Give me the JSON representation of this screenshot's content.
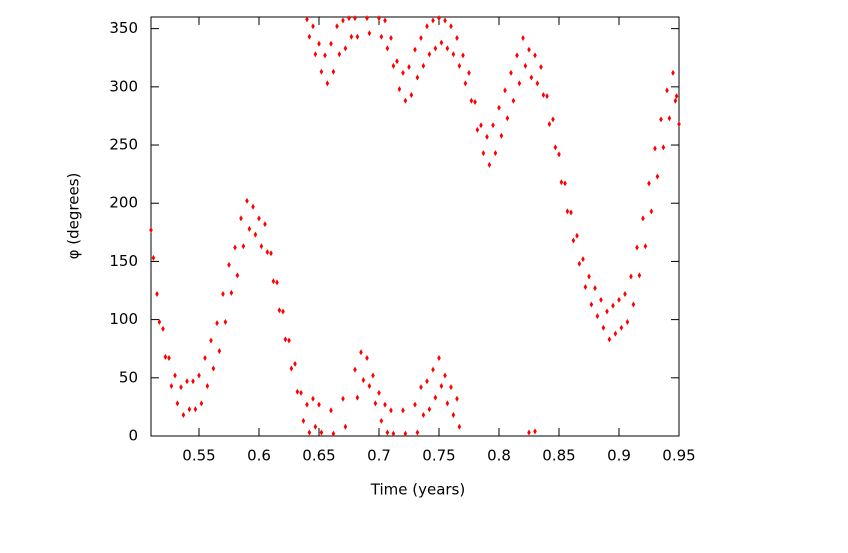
{
  "chart_data": {
    "type": "scatter",
    "x_label": "Time (years)",
    "y_label": "φ (degrees)",
    "color": "#ff0000",
    "xlim": [
      0.51,
      0.95
    ],
    "ylim": [
      0,
      360
    ],
    "xticks": [
      0.55,
      0.6,
      0.65,
      0.7,
      0.75,
      0.8,
      0.85,
      0.9,
      0.95
    ],
    "yticks": [
      0,
      50,
      100,
      150,
      200,
      250,
      300,
      350
    ],
    "x": [
      0.51,
      0.512,
      0.515,
      0.517,
      0.52,
      0.522,
      0.525,
      0.527,
      0.53,
      0.532,
      0.535,
      0.537,
      0.54,
      0.542,
      0.545,
      0.547,
      0.55,
      0.552,
      0.555,
      0.557,
      0.56,
      0.562,
      0.565,
      0.567,
      0.57,
      0.572,
      0.575,
      0.577,
      0.58,
      0.582,
      0.585,
      0.587,
      0.59,
      0.592,
      0.595,
      0.597,
      0.6,
      0.602,
      0.605,
      0.607,
      0.61,
      0.612,
      0.615,
      0.617,
      0.62,
      0.622,
      0.625,
      0.627,
      0.63,
      0.632,
      0.635,
      0.637,
      0.64,
      0.642,
      0.645,
      0.647,
      0.65,
      0.652,
      0.66,
      0.662,
      0.67,
      0.672,
      0.68,
      0.682,
      0.685,
      0.687,
      0.69,
      0.692,
      0.695,
      0.697,
      0.7,
      0.702,
      0.705,
      0.707,
      0.71,
      0.712,
      0.72,
      0.722,
      0.73,
      0.732,
      0.735,
      0.737,
      0.74,
      0.742,
      0.745,
      0.747,
      0.75,
      0.752,
      0.755,
      0.757,
      0.76,
      0.762,
      0.765,
      0.767,
      0.64,
      0.642,
      0.645,
      0.647,
      0.65,
      0.652,
      0.655,
      0.657,
      0.66,
      0.662,
      0.665,
      0.667,
      0.67,
      0.672,
      0.675,
      0.677,
      0.68,
      0.682,
      0.69,
      0.692,
      0.7,
      0.702,
      0.705,
      0.707,
      0.71,
      0.712,
      0.715,
      0.717,
      0.72,
      0.722,
      0.725,
      0.727,
      0.73,
      0.732,
      0.735,
      0.737,
      0.74,
      0.742,
      0.745,
      0.747,
      0.75,
      0.752,
      0.755,
      0.757,
      0.76,
      0.762,
      0.765,
      0.767,
      0.77,
      0.772,
      0.775,
      0.777,
      0.78,
      0.782,
      0.785,
      0.787,
      0.79,
      0.792,
      0.795,
      0.797,
      0.8,
      0.802,
      0.805,
      0.807,
      0.81,
      0.812,
      0.815,
      0.817,
      0.82,
      0.822,
      0.825,
      0.827,
      0.83,
      0.832,
      0.835,
      0.837,
      0.84,
      0.842,
      0.845,
      0.847,
      0.85,
      0.852,
      0.855,
      0.857,
      0.86,
      0.862,
      0.865,
      0.867,
      0.87,
      0.872,
      0.875,
      0.877,
      0.88,
      0.882,
      0.885,
      0.887,
      0.89,
      0.892,
      0.895,
      0.897,
      0.9,
      0.902,
      0.905,
      0.907,
      0.91,
      0.912,
      0.915,
      0.917,
      0.92,
      0.922,
      0.925,
      0.927,
      0.93,
      0.932,
      0.935,
      0.937,
      0.94,
      0.942,
      0.945,
      0.947,
      0.948,
      0.95,
      0.825,
      0.83
    ],
    "values": [
      177,
      153,
      122,
      98,
      92,
      68,
      67,
      43,
      52,
      28,
      42,
      18,
      47,
      23,
      47,
      23,
      52,
      28,
      67,
      43,
      82,
      58,
      97,
      73,
      122,
      98,
      147,
      123,
      162,
      138,
      187,
      163,
      202,
      178,
      197,
      173,
      187,
      163,
      182,
      158,
      157,
      133,
      132,
      108,
      107,
      83,
      82,
      58,
      62,
      38,
      37,
      13,
      27,
      3,
      32,
      8,
      27,
      3,
      22,
      2,
      32,
      8,
      57,
      33,
      72,
      48,
      67,
      43,
      52,
      28,
      37,
      13,
      27,
      3,
      22,
      2,
      22,
      2,
      27,
      3,
      42,
      18,
      47,
      23,
      57,
      33,
      67,
      43,
      52,
      28,
      42,
      18,
      32,
      8,
      358,
      343,
      352,
      328,
      337,
      313,
      327,
      303,
      337,
      313,
      352,
      328,
      357,
      333,
      359,
      343,
      359,
      343,
      359,
      346,
      359,
      343,
      357,
      333,
      342,
      318,
      322,
      298,
      312,
      288,
      317,
      293,
      332,
      308,
      342,
      318,
      352,
      328,
      357,
      333,
      359,
      338,
      357,
      333,
      352,
      328,
      342,
      318,
      327,
      303,
      312,
      288,
      287,
      263,
      267,
      243,
      257,
      233,
      267,
      243,
      282,
      258,
      297,
      273,
      312,
      288,
      327,
      303,
      342,
      318,
      332,
      308,
      327,
      303,
      317,
      293,
      292,
      268,
      272,
      248,
      242,
      218,
      217,
      193,
      192,
      168,
      172,
      148,
      152,
      128,
      137,
      113,
      127,
      103,
      117,
      93,
      107,
      83,
      112,
      88,
      117,
      93,
      122,
      98,
      137,
      113,
      162,
      138,
      187,
      163,
      217,
      193,
      247,
      223,
      272,
      248,
      297,
      273,
      312,
      288,
      292,
      268,
      3,
      4
    ]
  }
}
